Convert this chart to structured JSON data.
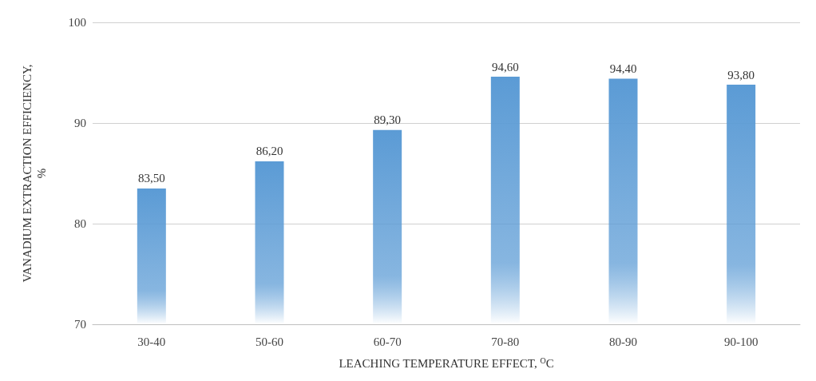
{
  "chart_data": {
    "type": "bar",
    "xlabel": "LEACHING TEMPERATURE EFFECT, $^{O}$C",
    "ylabel": "VANADIUM EXTRACTION EFFICIENCY, %",
    "categories": [
      "30-40",
      "50-60",
      "60-70",
      "70-80",
      "80-90",
      "90-100"
    ],
    "values": [
      83.5,
      86.2,
      89.3,
      94.6,
      94.4,
      93.8
    ],
    "value_labels": [
      "83,50",
      "86,20",
      "89,30",
      "94,60",
      "94,40",
      "93,80"
    ],
    "color": "#5b9bd5",
    "ylim": [
      70,
      100
    ],
    "yticks": [
      70,
      80,
      90,
      100
    ],
    "grid": "y"
  }
}
